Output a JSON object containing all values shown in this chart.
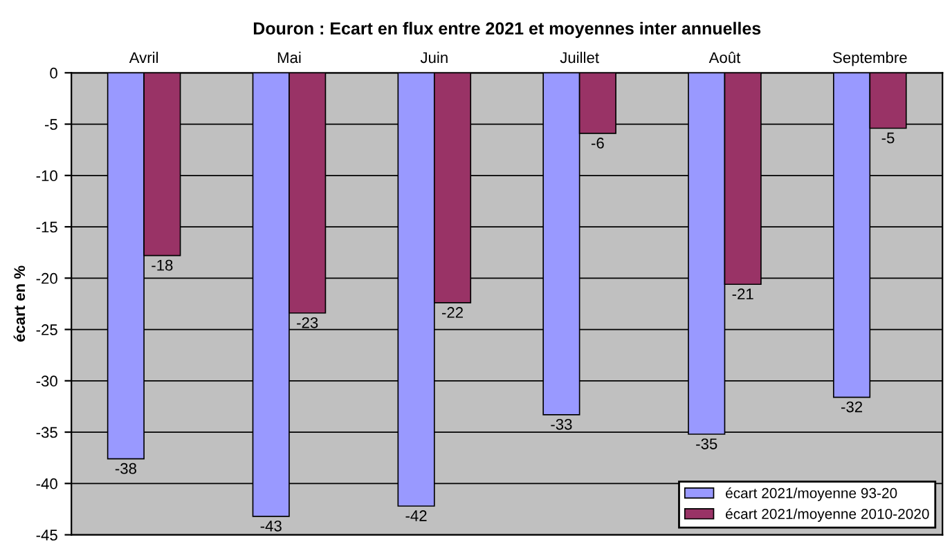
{
  "chart_data": {
    "type": "bar",
    "title": "Douron : Ecart en flux entre 2021 et moyennes inter annuelles",
    "ylabel": "écart en %",
    "categories": [
      "Avril",
      "Mai",
      "Juin",
      "Juillet",
      "Août",
      "Septembre"
    ],
    "series": [
      {
        "name": "écart 2021/moyenne 93-20",
        "color": "#9999ff",
        "values": [
          -37.6,
          -43.2,
          -42.2,
          -33.3,
          -35.2,
          -31.6
        ],
        "value_labels": [
          "-38",
          "-43",
          "-42",
          "-33",
          "-35",
          "-32"
        ]
      },
      {
        "name": "écart 2021/moyenne 2010-2020",
        "color": "#993366",
        "values": [
          -17.8,
          -23.4,
          -22.4,
          -5.9,
          -20.6,
          -5.4
        ],
        "value_labels": [
          "-18",
          "-23",
          "-22",
          "-6",
          "-21",
          "-5"
        ]
      }
    ],
    "ylim": [
      -45,
      0
    ],
    "yticks": [
      -45,
      -40,
      -35,
      -30,
      -25,
      -20,
      -15,
      -10,
      -5,
      0
    ],
    "grid": "y",
    "legend": "bottom right"
  }
}
